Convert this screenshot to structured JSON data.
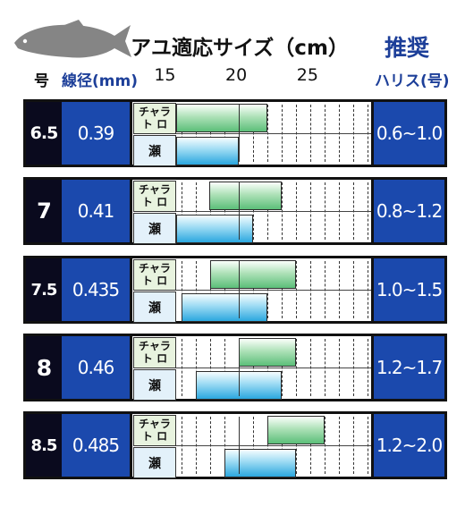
{
  "title": "アユ適応サイズ（cm）",
  "recommend_title": "推奨",
  "headers": {
    "size": "号",
    "line_diameter": "線径(mm)",
    "harisu": "ハリス(号)"
  },
  "chart_data": {
    "type": "bar",
    "xaxis_ticks": [
      15,
      20,
      25
    ],
    "xlim": [
      15.6,
      29.4
    ],
    "categories_labels": {
      "chara_toro": "チャラ\nト ロ",
      "se": "瀬"
    },
    "series": [
      {
        "size": "6.5",
        "line_diameter": "0.39",
        "harisu": "0.6~1.0",
        "chara_toro": [
          15.6,
          22.0
        ],
        "se": [
          15.6,
          20.0
        ]
      },
      {
        "size": "7",
        "line_diameter": "0.41",
        "harisu": "0.8~1.2",
        "chara_toro": [
          17.9,
          23.0
        ],
        "se": [
          15.6,
          21.0
        ]
      },
      {
        "size": "7.5",
        "line_diameter": "0.435",
        "harisu": "1.0~1.5",
        "chara_toro": [
          18.0,
          24.0
        ],
        "se": [
          16.0,
          22.0
        ]
      },
      {
        "size": "8",
        "line_diameter": "0.46",
        "harisu": "1.2~1.7",
        "chara_toro": [
          20.0,
          24.0
        ],
        "se": [
          17.0,
          23.0
        ]
      },
      {
        "size": "8.5",
        "line_diameter": "0.485",
        "harisu": "1.2~2.0",
        "chara_toro": [
          22.0,
          26.0
        ],
        "se": [
          19.0,
          24.0
        ]
      }
    ]
  },
  "colors": {
    "navy": "#0a0a1e",
    "blue": "#1b49ad",
    "green": "#5cbf79",
    "cyan": "#2ba7df"
  }
}
